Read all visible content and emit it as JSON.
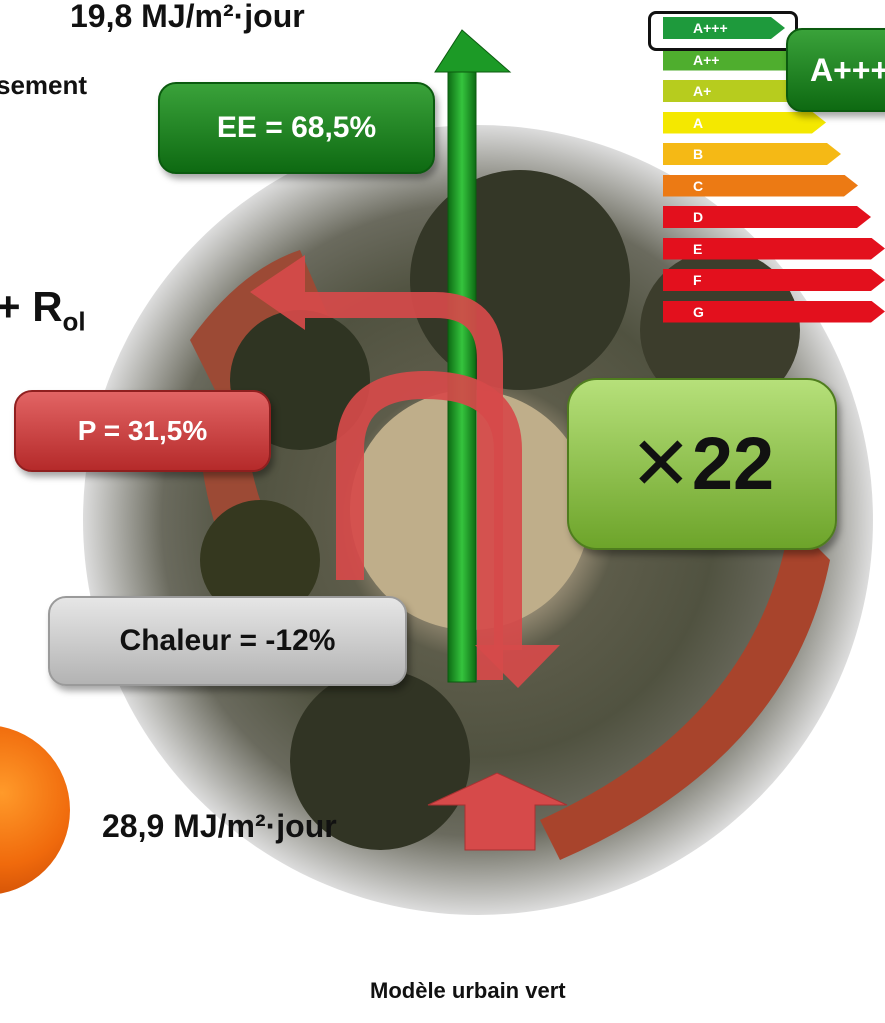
{
  "top_label": "19,8 MJ/m²·jour",
  "partial_left_top": "sement",
  "partial_left_mid": "+ R",
  "partial_left_mid_sub": "ol",
  "ee_box": "EE = 68,5%",
  "p_box": "P = 31,5%",
  "heat_box": "Chaleur = -12%",
  "factor_box": "✕22",
  "bottom_label": "28,9 MJ/m²·jour",
  "caption": "Modèle urbain vert",
  "rating_badge": "A+++",
  "energy_classes": [
    "A+++",
    "A++",
    "A+",
    "A",
    "B",
    "C",
    "D",
    "E",
    "F",
    "G"
  ],
  "energy_colors": [
    "#1e9a3c",
    "#4fae2e",
    "#b7cc1e",
    "#f4e800",
    "#f5b915",
    "#ec7a14",
    "#e3101d",
    "#e3101d",
    "#e3101d",
    "#e3101d"
  ],
  "selected_class": "A+++",
  "colors": {
    "green": "#1a8a22",
    "red": "#d64a4a",
    "gray": "#c8c8c8"
  }
}
